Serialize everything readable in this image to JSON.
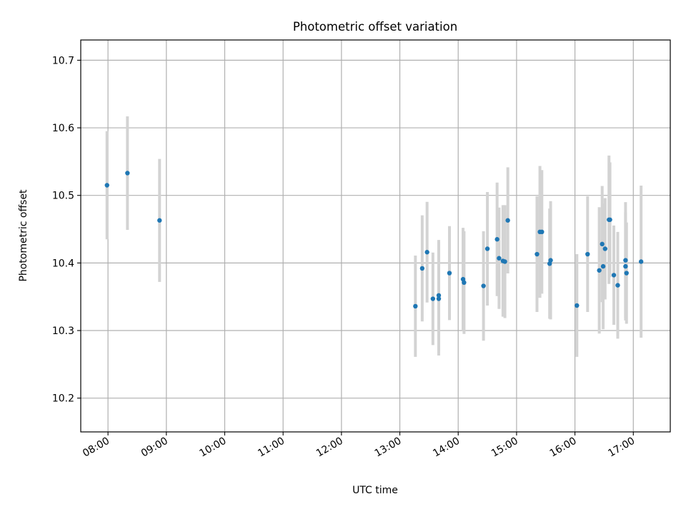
{
  "chart_data": {
    "type": "scatter",
    "title": "Photometric offset variation",
    "xlabel": "UTC time",
    "ylabel": "Photometric offset",
    "x_ticks": [
      "08:00",
      "09:00",
      "10:00",
      "11:00",
      "12:00",
      "13:00",
      "14:00",
      "15:00",
      "16:00",
      "17:00"
    ],
    "y_ticks": [
      "10.2",
      "10.3",
      "10.4",
      "10.5",
      "10.6",
      "10.7"
    ],
    "xlim": [
      "07:32",
      "17:38"
    ],
    "ylim": [
      10.15,
      10.73
    ],
    "grid": true,
    "colors": {
      "point": "#1f77b4",
      "errorbar": "#d3d3d3",
      "grid": "#b0b0b0"
    },
    "points": [
      {
        "x": "07:59",
        "y": 10.515,
        "err": 0.16
      },
      {
        "x": "08:20",
        "y": 10.533,
        "err": 0.168
      },
      {
        "x": "08:53",
        "y": 10.463,
        "err": 0.182
      },
      {
        "x": "13:16",
        "y": 10.336,
        "err": 0.15
      },
      {
        "x": "13:23",
        "y": 10.392,
        "err": 0.157
      },
      {
        "x": "13:28",
        "y": 10.416,
        "err": 0.149
      },
      {
        "x": "13:34",
        "y": 10.347,
        "err": 0.137
      },
      {
        "x": "13:40",
        "y": 10.352,
        "err": 0.164
      },
      {
        "x": "13:40",
        "y": 10.347,
        "err": 0.168
      },
      {
        "x": "13:51",
        "y": 10.385,
        "err": 0.139
      },
      {
        "x": "14:05",
        "y": 10.376,
        "err": 0.152
      },
      {
        "x": "14:06",
        "y": 10.371,
        "err": 0.152
      },
      {
        "x": "14:26",
        "y": 10.366,
        "err": 0.162
      },
      {
        "x": "14:30",
        "y": 10.421,
        "err": 0.168
      },
      {
        "x": "14:40",
        "y": 10.435,
        "err": 0.168
      },
      {
        "x": "14:42",
        "y": 10.407,
        "err": 0.15
      },
      {
        "x": "14:46",
        "y": 10.403,
        "err": 0.165
      },
      {
        "x": "14:48",
        "y": 10.402,
        "err": 0.167
      },
      {
        "x": "14:51",
        "y": 10.463,
        "err": 0.157
      },
      {
        "x": "15:21",
        "y": 10.413,
        "err": 0.171
      },
      {
        "x": "15:24",
        "y": 10.446,
        "err": 0.195
      },
      {
        "x": "15:26",
        "y": 10.446,
        "err": 0.183
      },
      {
        "x": "15:34",
        "y": 10.399,
        "err": 0.163
      },
      {
        "x": "15:35",
        "y": 10.404,
        "err": 0.175
      },
      {
        "x": "16:02",
        "y": 10.337,
        "err": 0.152
      },
      {
        "x": "16:13",
        "y": 10.413,
        "err": 0.171
      },
      {
        "x": "16:25",
        "y": 10.389,
        "err": 0.187
      },
      {
        "x": "16:28",
        "y": 10.428,
        "err": 0.172
      },
      {
        "x": "16:29",
        "y": 10.395,
        "err": 0.186
      },
      {
        "x": "16:31",
        "y": 10.421,
        "err": 0.15
      },
      {
        "x": "16:35",
        "y": 10.464,
        "err": 0.19
      },
      {
        "x": "16:36",
        "y": 10.464,
        "err": 0.17
      },
      {
        "x": "16:40",
        "y": 10.382,
        "err": 0.147
      },
      {
        "x": "16:44",
        "y": 10.367,
        "err": 0.158
      },
      {
        "x": "16:52",
        "y": 10.404,
        "err": 0.172
      },
      {
        "x": "16:52",
        "y": 10.395,
        "err": 0.16
      },
      {
        "x": "16:53",
        "y": 10.385,
        "err": 0.15
      },
      {
        "x": "17:08",
        "y": 10.402,
        "err": 0.225
      }
    ]
  }
}
